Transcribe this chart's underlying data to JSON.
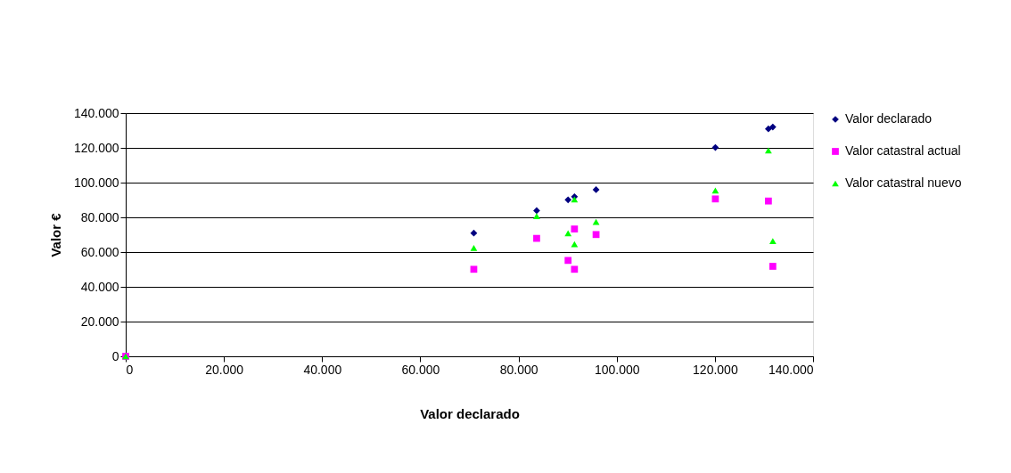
{
  "chart_data": {
    "type": "scatter",
    "xlabel": "Valor declarado",
    "ylabel": "Valor €",
    "xlim": [
      0,
      140000
    ],
    "ylim": [
      0,
      140000
    ],
    "xticks": [
      0,
      {
        "value": 20000,
        "label": "20.000"
      },
      {
        "value": 40000,
        "label": "40.000"
      },
      {
        "value": 60000,
        "label": "60.000"
      },
      {
        "value": 80000,
        "label": "80.000"
      },
      {
        "value": 100000,
        "label": "100.000"
      },
      {
        "value": 120000,
        "label": "120.000"
      },
      {
        "value": 140000,
        "label": "140.000"
      }
    ],
    "yticks": [
      0,
      {
        "value": 20000,
        "label": "20.000"
      },
      {
        "value": 40000,
        "label": "40.000"
      },
      {
        "value": 60000,
        "label": "60.000"
      },
      {
        "value": 80000,
        "label": "80.000"
      },
      {
        "value": 100000,
        "label": "100.000"
      },
      {
        "value": 120000,
        "label": "120.000"
      },
      {
        "value": 140000,
        "label": "140.000"
      }
    ],
    "grid": "y",
    "legend": "right",
    "series": [
      {
        "name": "Valor declarado",
        "color": "#000080",
        "marker": "diamond",
        "x": [
          0,
          70900,
          83700,
          90100,
          91400,
          95800,
          120100,
          130900,
          131800
        ],
        "values": [
          0,
          70900,
          83900,
          90100,
          91900,
          95900,
          120200,
          130900,
          132000
        ]
      },
      {
        "name": "Valor catastral actual",
        "color": "#ff00ff",
        "marker": "square",
        "x": [
          0,
          70900,
          83700,
          90100,
          91400,
          91400,
          95800,
          120100,
          130900,
          131800
        ],
        "values": [
          0,
          50100,
          67900,
          55200,
          73300,
          50100,
          70100,
          90600,
          89400,
          51800
        ]
      },
      {
        "name": "Valor catastral nuevo",
        "color": "#00ff00",
        "marker": "triangle",
        "x": [
          0,
          70900,
          83700,
          90100,
          91400,
          91400,
          95800,
          120100,
          130900,
          131800
        ],
        "values": [
          0,
          62400,
          80700,
          70800,
          90300,
          64600,
          77400,
          95400,
          118500,
          66300
        ]
      }
    ]
  }
}
